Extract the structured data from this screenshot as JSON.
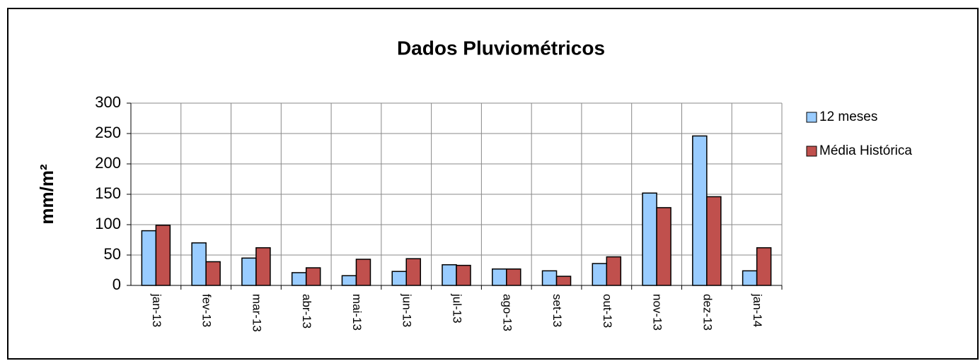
{
  "chart_data": {
    "type": "bar",
    "title": "Dados Pluviométricos",
    "y_label": "mm/m²",
    "categories": [
      "jan-13",
      "fev-13",
      "mar-13",
      "abr-13",
      "mai-13",
      "jun-13",
      "jul-13",
      "ago-13",
      "set-13",
      "out-13",
      "nov-13",
      "dez-13",
      "jan-14"
    ],
    "series": [
      {
        "name": "12 meses",
        "color": "#99ccff",
        "values": [
          90,
          70,
          45,
          21,
          16,
          23,
          34,
          27,
          24,
          36,
          152,
          246,
          24
        ]
      },
      {
        "name": "Média Histórica",
        "color": "#c0504d",
        "values": [
          99,
          39,
          62,
          29,
          43,
          44,
          33,
          27,
          15,
          47,
          128,
          146,
          62
        ]
      }
    ],
    "ylim": [
      0,
      300
    ],
    "yticks": [
      0,
      50,
      100,
      150,
      200,
      250,
      300
    ],
    "grid": true,
    "legend": "right"
  }
}
